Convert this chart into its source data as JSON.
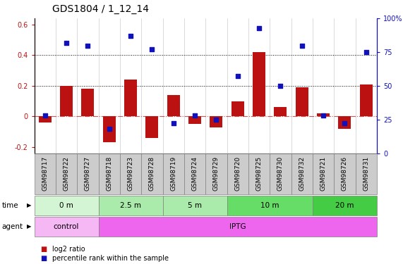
{
  "title": "GDS1804 / 1_12_14",
  "samples": [
    "GSM98717",
    "GSM98722",
    "GSM98727",
    "GSM98718",
    "GSM98723",
    "GSM98728",
    "GSM98719",
    "GSM98724",
    "GSM98729",
    "GSM98720",
    "GSM98725",
    "GSM98730",
    "GSM98732",
    "GSM98721",
    "GSM98726",
    "GSM98731"
  ],
  "log2_ratio": [
    -0.04,
    0.2,
    0.18,
    -0.17,
    0.24,
    -0.14,
    0.14,
    -0.05,
    -0.07,
    0.1,
    0.42,
    0.06,
    0.19,
    0.02,
    -0.08,
    0.21
  ],
  "pct_rank": [
    28,
    82,
    80,
    18,
    87,
    77,
    22,
    28,
    25,
    57,
    93,
    50,
    80,
    28,
    22,
    75
  ],
  "time_groups": [
    {
      "label": "0 m",
      "start": 0,
      "end": 3,
      "color": "#d4f5d4"
    },
    {
      "label": "2.5 m",
      "start": 3,
      "end": 6,
      "color": "#aaeaaa"
    },
    {
      "label": "5 m",
      "start": 6,
      "end": 9,
      "color": "#aaeaaa"
    },
    {
      "label": "10 m",
      "start": 9,
      "end": 13,
      "color": "#66dd66"
    },
    {
      "label": "20 m",
      "start": 13,
      "end": 16,
      "color": "#44cc44"
    }
  ],
  "agent_groups": [
    {
      "label": "control",
      "start": 0,
      "end": 3,
      "color": "#f5b8f5"
    },
    {
      "label": "IPTG",
      "start": 3,
      "end": 16,
      "color": "#ee66ee"
    }
  ],
  "bar_color": "#bb1111",
  "dot_color": "#1111bb",
  "bar_width": 0.6,
  "ylim_left": [
    -0.24,
    0.64
  ],
  "ylim_right": [
    0,
    100
  ],
  "yticks_left": [
    -0.2,
    0.0,
    0.2,
    0.4,
    0.6
  ],
  "yticks_right": [
    0,
    25,
    50,
    75,
    100
  ],
  "dotted_hlines": [
    0.2,
    0.4
  ],
  "title_fontsize": 10,
  "tick_fontsize": 7,
  "label_fontsize": 8,
  "sample_box_color": "#cccccc"
}
